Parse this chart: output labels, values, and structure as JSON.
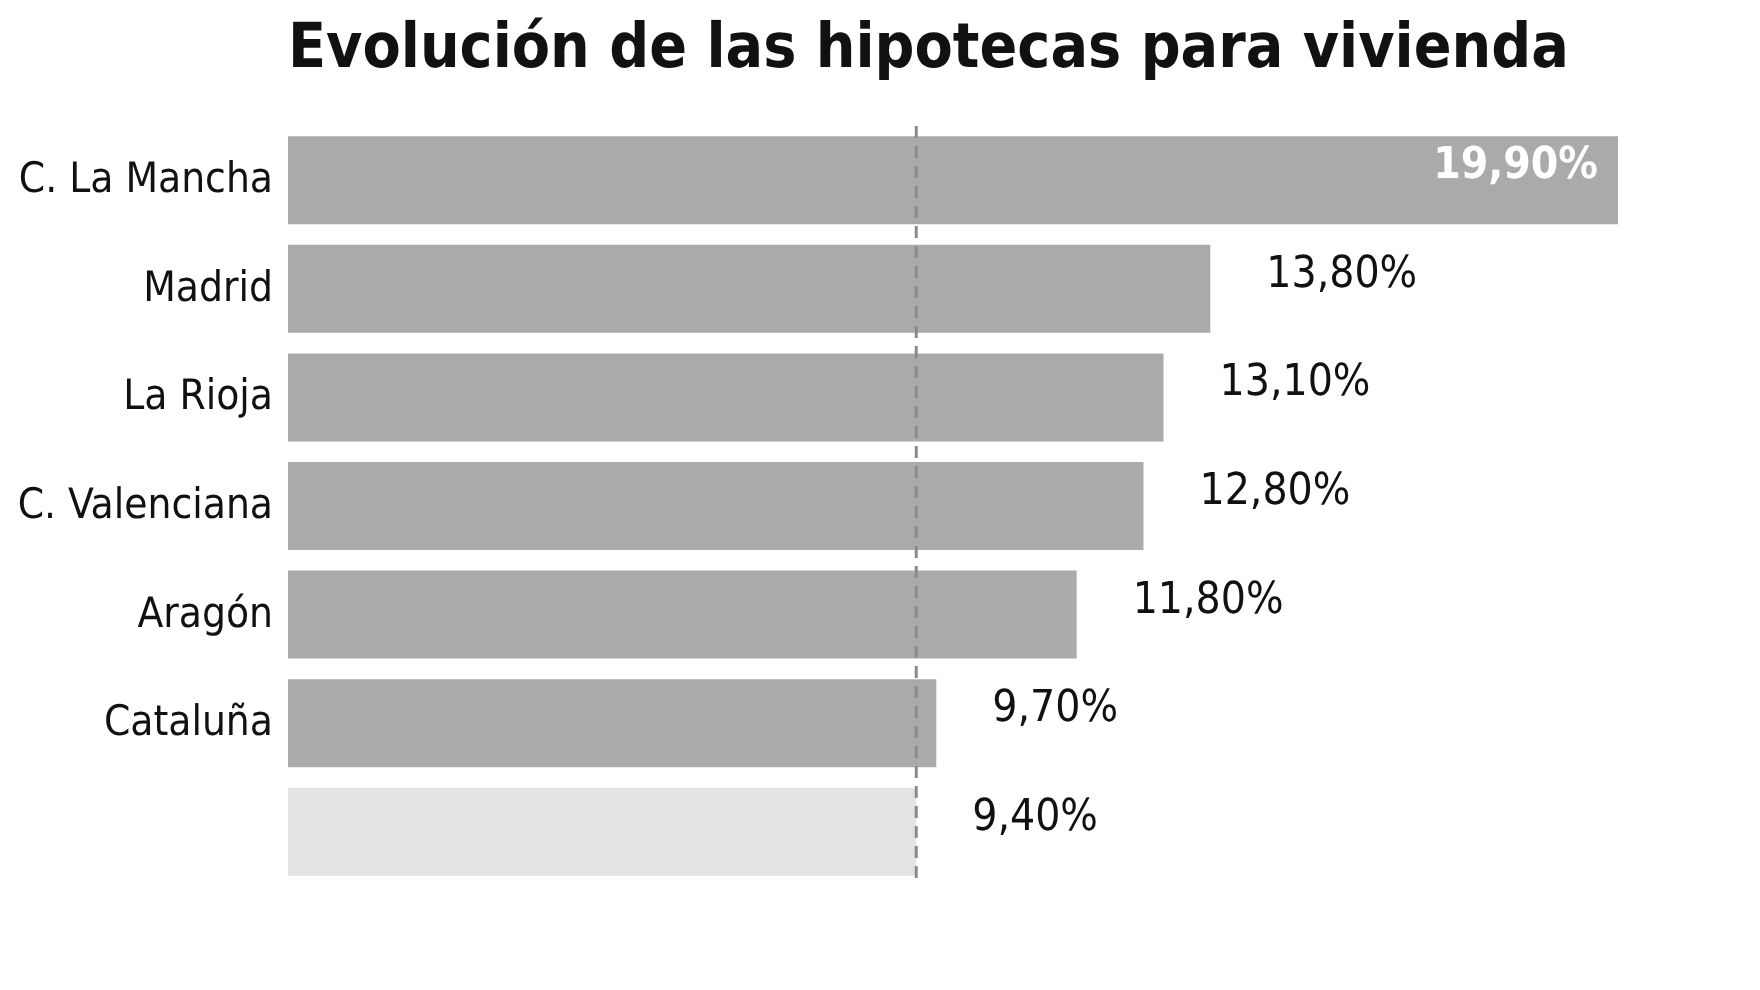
{
  "chart_data": {
    "type": "bar",
    "orientation": "horizontal",
    "title": "Evolución de las hipotecas para vivienda",
    "categories": [
      "C. La Mancha",
      "Madrid",
      "La Rioja",
      "C. Valenciana",
      "Aragón",
      "Cataluña",
      null
    ],
    "values": [
      19.9,
      13.8,
      13.1,
      12.8,
      11.8,
      9.7,
      9.4
    ],
    "colors": [
      "#a9abaa",
      "#a9abaa",
      "#a9abaa",
      "#a9abaa",
      "#a9abaa",
      "#a9abaa",
      "#e2e4e2"
    ],
    "value_labels": [
      "19,90%",
      "13,80%",
      "13,10%",
      "12,80%",
      "11,80%",
      "9,70%",
      "9,40%"
    ],
    "tick_labels": "y",
    "ref_lines": [
      {
        "axis": "x",
        "value": 9.4,
        "color": "#8a8a8a",
        "line_style": "dashed"
      }
    ]
  }
}
